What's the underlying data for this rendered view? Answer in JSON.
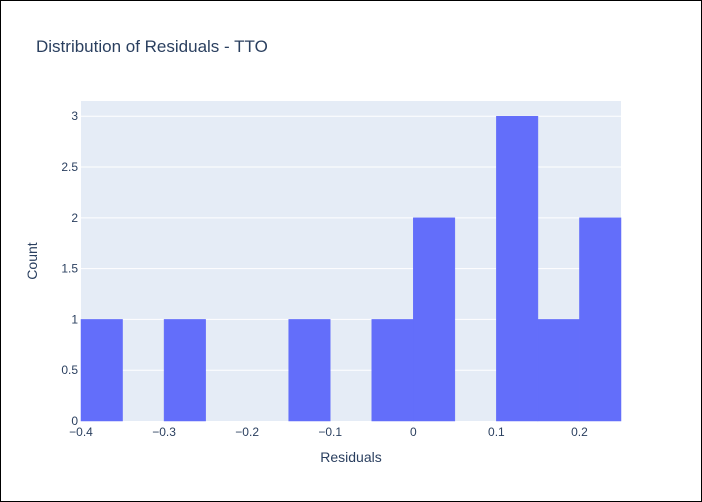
{
  "chart_data": {
    "type": "bar",
    "title": "Distribution of Residuals - TTO",
    "xlabel": "Residuals",
    "ylabel": "Count",
    "xlim": [
      -0.4,
      0.25
    ],
    "ylim": [
      0,
      3.15
    ],
    "bin_width": 0.05,
    "bins": [
      {
        "start": -0.4,
        "end": -0.35,
        "count": 1
      },
      {
        "start": -0.3,
        "end": -0.25,
        "count": 1
      },
      {
        "start": -0.15,
        "end": -0.1,
        "count": 1
      },
      {
        "start": -0.05,
        "end": 0.0,
        "count": 1
      },
      {
        "start": 0.0,
        "end": 0.05,
        "count": 2
      },
      {
        "start": 0.1,
        "end": 0.15,
        "count": 3
      },
      {
        "start": 0.15,
        "end": 0.2,
        "count": 1
      },
      {
        "start": 0.2,
        "end": 0.25,
        "count": 2
      }
    ],
    "x_ticks": [
      {
        "value": -0.4,
        "label": "−0.4"
      },
      {
        "value": -0.3,
        "label": "−0.3"
      },
      {
        "value": -0.2,
        "label": "−0.2"
      },
      {
        "value": -0.1,
        "label": "−0.1"
      },
      {
        "value": 0,
        "label": "0"
      },
      {
        "value": 0.1,
        "label": "0.1"
      },
      {
        "value": 0.2,
        "label": "0.2"
      }
    ],
    "y_ticks": [
      {
        "value": 0,
        "label": "0"
      },
      {
        "value": 0.5,
        "label": "0.5"
      },
      {
        "value": 1,
        "label": "1"
      },
      {
        "value": 1.5,
        "label": "1.5"
      },
      {
        "value": 2,
        "label": "2"
      },
      {
        "value": 2.5,
        "label": "2.5"
      },
      {
        "value": 3,
        "label": "3"
      }
    ],
    "grid": true,
    "colors": {
      "bar": "#636efa",
      "plot_bg": "#e5ecf6",
      "grid": "#ffffff",
      "text": "#2a3f5f"
    }
  }
}
